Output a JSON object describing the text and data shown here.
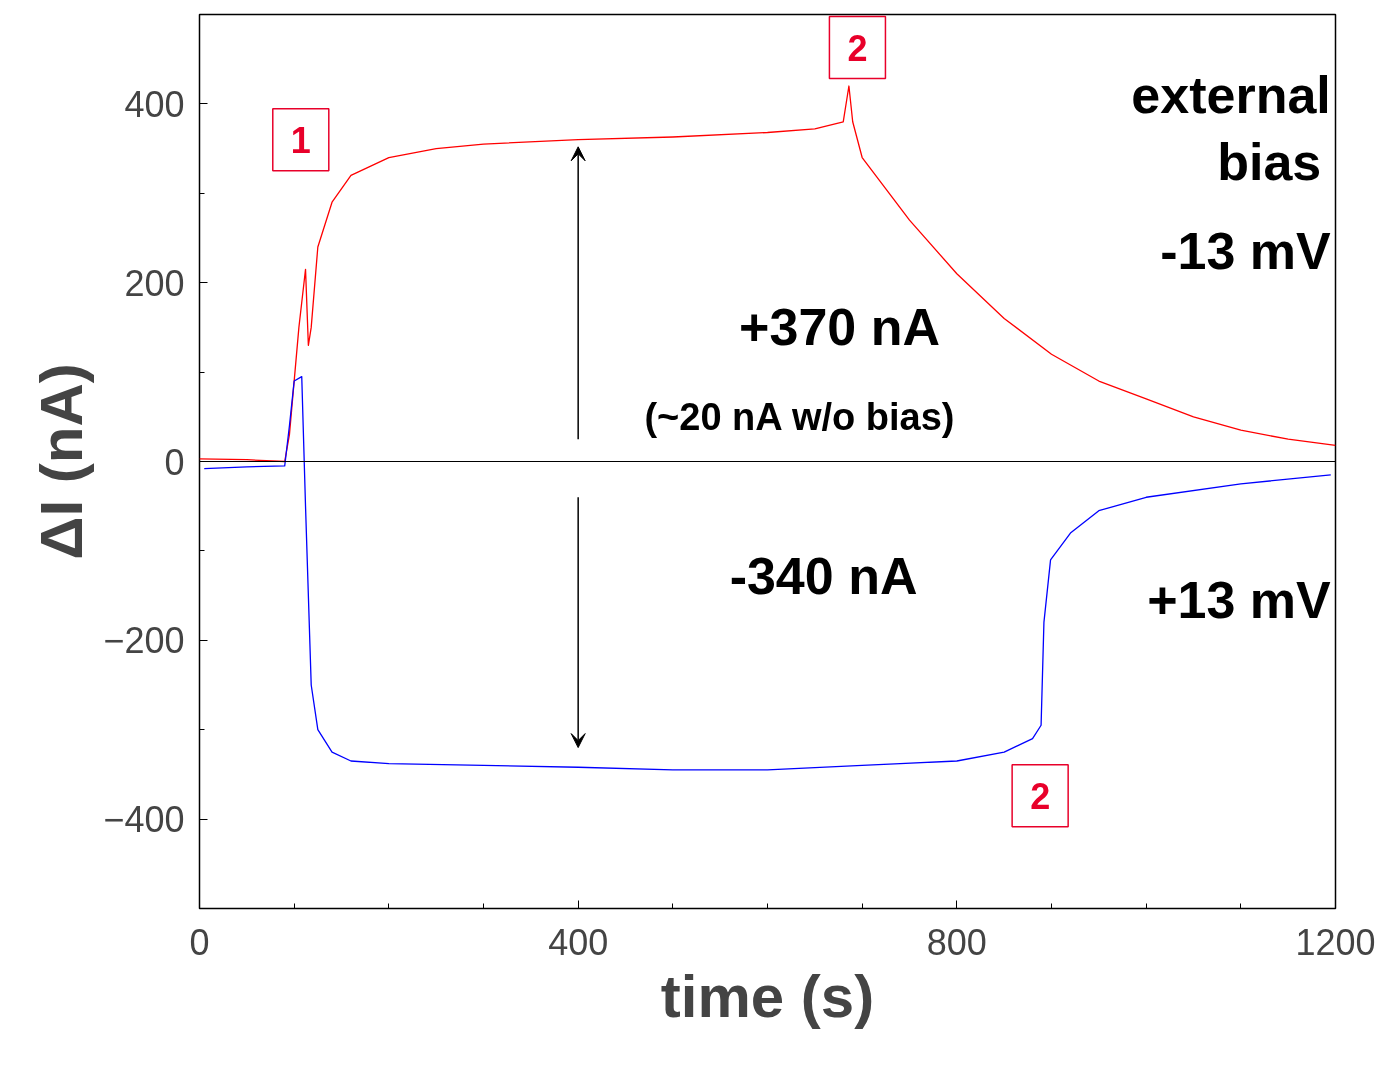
{
  "chart_data": {
    "type": "line",
    "xlabel": "time (s)",
    "ylabel": "ΔI (nA)",
    "xlim": [
      0,
      1200
    ],
    "ylim": [
      -500,
      500
    ],
    "xticks": [
      0,
      400,
      800,
      1200
    ],
    "yticks": [
      -400,
      -200,
      0,
      200,
      400
    ],
    "grid": false,
    "marker": "none",
    "line_style": "solid",
    "series": [
      {
        "color": "#ff0000",
        "x": [
          0,
          50,
          90,
          95,
          105,
          112,
          115,
          118,
          125,
          140,
          160,
          200,
          250,
          300,
          400,
          500,
          600,
          650,
          680,
          686,
          690,
          700,
          750,
          800,
          850,
          900,
          950,
          1000,
          1050,
          1100,
          1150,
          1200
        ],
        "values": [
          3,
          2,
          0,
          30,
          150,
          215,
          130,
          150,
          240,
          290,
          320,
          340,
          350,
          355,
          360,
          363,
          368,
          372,
          380,
          420,
          380,
          340,
          270,
          210,
          160,
          120,
          90,
          70,
          50,
          35,
          25,
          18
        ]
      },
      {
        "color": "#0000ff",
        "x": [
          5,
          50,
          90,
          95,
          100,
          108,
          112,
          118,
          125,
          140,
          160,
          200,
          300,
          400,
          500,
          600,
          700,
          800,
          850,
          880,
          889,
          892,
          899,
          920,
          950,
          1000,
          1100,
          1195
        ],
        "values": [
          -8,
          -6,
          -5,
          40,
          90,
          95,
          -50,
          -250,
          -300,
          -325,
          -335,
          -338,
          -340,
          -342,
          -345,
          -345,
          -340,
          -335,
          -325,
          -310,
          -295,
          -180,
          -110,
          -80,
          -55,
          -40,
          -25,
          -15
        ]
      }
    ],
    "ref_lines": [
      {
        "axis": "y",
        "value": 0,
        "color": "#000000"
      }
    ],
    "annotations": [
      "1",
      "2",
      "2",
      "external",
      "bias",
      "-13 mV",
      "+370 nA",
      "(~20 nA w/o bias)",
      "-340 nA",
      "+13 mV"
    ]
  }
}
